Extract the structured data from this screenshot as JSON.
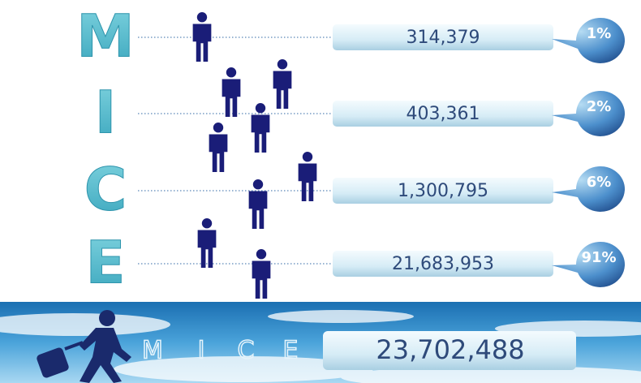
{
  "rows": [
    {
      "letter": "M",
      "value": "314,379",
      "share": "1%"
    },
    {
      "letter": "I",
      "value": "403,361",
      "share": "2%"
    },
    {
      "letter": "C",
      "value": "1,300,795",
      "share": "6%"
    },
    {
      "letter": "E",
      "value": "21,683,953",
      "share": "91%"
    }
  ],
  "footer": {
    "letters": [
      "M",
      "I",
      "C",
      "E"
    ],
    "total": "23,702,488"
  }
}
